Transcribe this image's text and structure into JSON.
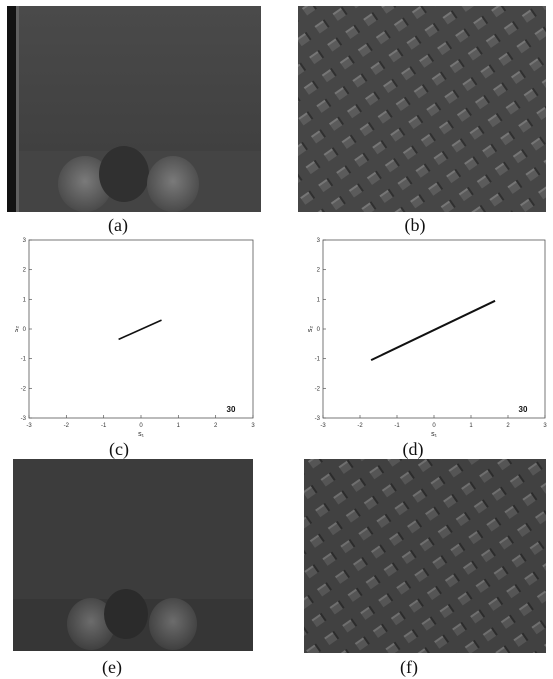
{
  "captions": {
    "a": "(a)",
    "b": "(b)",
    "c": "(c)",
    "d": "(d)",
    "e": "(e)",
    "f": "(f)"
  },
  "colors": {
    "photo_dark": "#3a3a3a",
    "plot_line": "#111111",
    "axis": "#555555"
  },
  "chart_data": [
    {
      "type": "line",
      "panel": "c",
      "xlabel": "s₁",
      "ylabel": "s₂",
      "xlim": [
        -3,
        3
      ],
      "ylim": [
        -3,
        3
      ],
      "xticks": [
        -3,
        -2,
        -1,
        0,
        1,
        2,
        3
      ],
      "yticks": [
        -3,
        -2,
        -1,
        0,
        1,
        2,
        3
      ],
      "annotation": "30",
      "series": [
        {
          "x": [
            -0.6,
            0.55
          ],
          "y": [
            -0.35,
            0.3
          ]
        }
      ]
    },
    {
      "type": "line",
      "panel": "d",
      "xlabel": "s₁",
      "ylabel": "s₂",
      "xlim": [
        -3,
        3
      ],
      "ylim": [
        -3,
        3
      ],
      "xticks": [
        -3,
        -2,
        -1,
        0,
        1,
        2,
        3
      ],
      "yticks": [
        -3,
        -2,
        -1,
        0,
        1,
        2,
        3
      ],
      "annotation": "30",
      "series": [
        {
          "x": [
            -1.7,
            1.65
          ],
          "y": [
            -1.05,
            0.95
          ]
        }
      ]
    }
  ]
}
